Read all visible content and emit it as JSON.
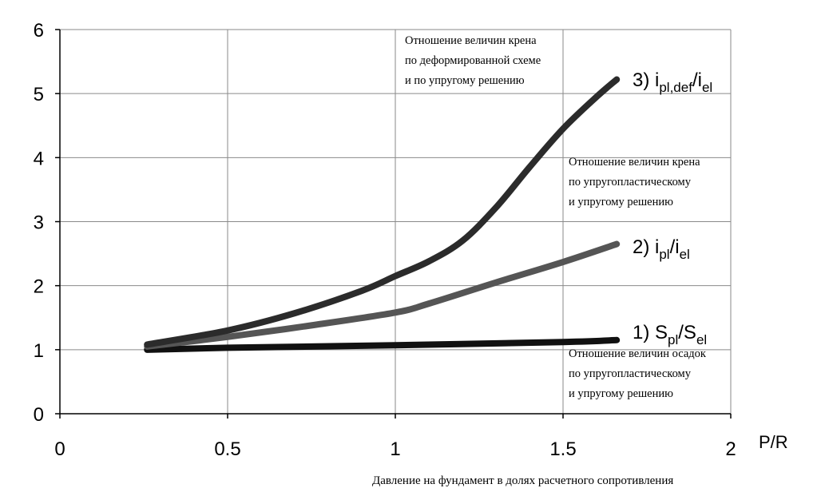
{
  "chart_data": {
    "type": "line",
    "xlim": [
      0,
      2
    ],
    "ylim": [
      0,
      6
    ],
    "x_ticks": [
      "0",
      "0.5",
      "1",
      "1.5",
      "2"
    ],
    "y_ticks": [
      "0",
      "1",
      "2",
      "3",
      "4",
      "5",
      "6"
    ],
    "x_unit": "P/R",
    "xlabel": "Давление на фундамент в долях расчетного сопротивления",
    "grid": true,
    "series": [
      {
        "label_main": "1) S",
        "label_sub1": "pl",
        "label_mid": "/S",
        "label_sub2": "el",
        "color": "#111111",
        "x": [
          0.26,
          0.5,
          1.0,
          1.5,
          1.66
        ],
        "y": [
          1.0,
          1.03,
          1.07,
          1.12,
          1.15
        ]
      },
      {
        "label_main": "2) i",
        "label_sub1": "pl",
        "label_mid": "/i",
        "label_sub2": "el",
        "color": "#555555",
        "x": [
          0.26,
          0.5,
          0.75,
          1.0,
          1.1,
          1.3,
          1.5,
          1.66
        ],
        "y": [
          1.05,
          1.2,
          1.38,
          1.58,
          1.72,
          2.05,
          2.37,
          2.65
        ]
      },
      {
        "label_main": "3) i",
        "label_sub1": "pl,def",
        "label_mid": "/i",
        "label_sub2": "el",
        "color": "#2b2b2b",
        "x": [
          0.26,
          0.5,
          0.7,
          0.9,
          1.0,
          1.1,
          1.2,
          1.3,
          1.4,
          1.5,
          1.6,
          1.66
        ],
        "y": [
          1.08,
          1.3,
          1.57,
          1.92,
          2.15,
          2.38,
          2.7,
          3.22,
          3.85,
          4.45,
          4.95,
          5.22
        ]
      }
    ],
    "annotations": [
      {
        "lines": [
          "Отношение величин крена",
          "по деформированной схеме",
          "и по упругому решению"
        ]
      },
      {
        "lines": [
          "Отношение величин крена",
          "по упругопластическому",
          "и упругому решению"
        ]
      },
      {
        "lines": [
          "Отношение величин осадок",
          "по упругопластическому",
          "и упругому решению"
        ]
      }
    ]
  }
}
